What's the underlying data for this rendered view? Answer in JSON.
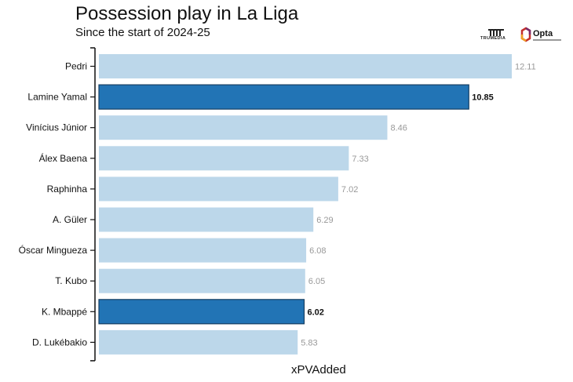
{
  "header": {
    "title": "Possession play in La Liga",
    "subtitle": "Since the start of 2024-25"
  },
  "logos": {
    "trumedia": "TRUMEDIA",
    "opta": "Opta"
  },
  "colors": {
    "bar_default": "#bcd7ea",
    "bar_highlight": "#2274b5",
    "bar_highlight_border": "#173f63",
    "label_default": "#999999",
    "label_highlight": "#111111",
    "opta_red": "#c4302b",
    "opta_purple": "#7a2a6a",
    "opta_orange": "#f0a024"
  },
  "chart_data": {
    "type": "bar",
    "orientation": "horizontal",
    "xlabel": "xPVAdded",
    "ylabel": "",
    "xlim": [
      0,
      12.11
    ],
    "grid": false,
    "categories": [
      "Pedri",
      "Lamine Yamal",
      "Vinícius Júnior",
      "Álex Baena",
      "Raphinha",
      "A. Güler",
      "Óscar Mingueza",
      "T. Kubo",
      "K. Mbappé",
      "D. Lukébakio"
    ],
    "values": [
      12.11,
      10.85,
      8.46,
      7.33,
      7.02,
      6.29,
      6.08,
      6.05,
      6.02,
      5.83
    ],
    "value_labels": [
      "12.11",
      "10.85",
      "8.46",
      "7.33",
      "7.02",
      "6.29",
      "6.08",
      "6.05",
      "6.02",
      "5.83"
    ],
    "highlighted": [
      "Lamine Yamal",
      "K. Mbappé"
    ]
  }
}
